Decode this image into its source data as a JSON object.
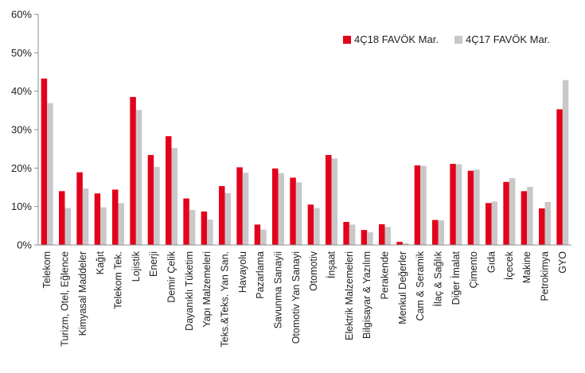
{
  "chart_data": {
    "type": "bar",
    "categories": [
      "Telekom",
      "Turizm, Otel, Eğlence",
      "Kimyasal Maddeler",
      "Kağıt",
      "Telekom Tek.",
      "Lojistik",
      "Enerji",
      "Demir Çelik",
      "Dayanıklı Tüketim",
      "Yapı Malzemeleri",
      "Teks.&Teks. Yan San.",
      "Havayolu",
      "Pazarlama",
      "Savunma Sanayii",
      "Otomotiv Yan Sanayi",
      "Otomotiv",
      "İnşaat",
      "Elektrik Malzemeleri",
      "Bilgisayar & Yazılım",
      "Perakende",
      "Menkul Değerler",
      "Cam & Seramik",
      "İlaç & Sağlık",
      "Diğer İmalat",
      "Çimento",
      "Gıda",
      "İçecek",
      "Makine",
      "Petrokimya",
      "GYO"
    ],
    "series": [
      {
        "name": "4Ç18 FAVÖK Mar.",
        "color": "#e3001b",
        "values": [
          43.3,
          14.0,
          18.9,
          13.4,
          14.4,
          38.5,
          23.4,
          28.3,
          12.1,
          8.7,
          15.3,
          20.2,
          5.3,
          19.9,
          17.5,
          10.5,
          23.4,
          6.0,
          3.9,
          5.4,
          0.8,
          20.7,
          6.5,
          21.1,
          19.3,
          10.9,
          16.4,
          14.0,
          9.5,
          35.3
        ]
      },
      {
        "name": "4Ç17 FAVÖK Mar.",
        "color": "#c8c8c8",
        "values": [
          36.9,
          9.6,
          14.7,
          9.8,
          10.9,
          35.1,
          20.3,
          25.2,
          9.1,
          6.6,
          13.5,
          18.8,
          4.0,
          18.7,
          16.3,
          9.6,
          22.5,
          5.3,
          3.3,
          4.7,
          0.5,
          20.6,
          6.4,
          21.0,
          19.6,
          11.3,
          17.4,
          15.1,
          11.2,
          42.9
        ]
      }
    ],
    "ylim": [
      0,
      60
    ],
    "yticks": [
      "0%",
      "10%",
      "20%",
      "30%",
      "40%",
      "50%",
      "60%"
    ],
    "ytick_values": [
      0,
      10,
      20,
      30,
      40,
      50,
      60
    ],
    "grid": false,
    "legend_position": "top-right"
  }
}
